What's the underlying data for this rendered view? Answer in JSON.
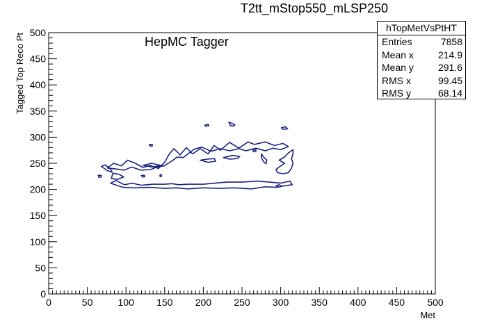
{
  "chart_data": {
    "type": "contour",
    "title": "T2tt_mStop550_mLSP250",
    "annotation": "HepMC Tagger",
    "xlabel": "Met",
    "ylabel": "Tagged Top Reco Pt",
    "xlim": [
      0,
      500
    ],
    "ylim": [
      0,
      500
    ],
    "x_ticks": [
      0,
      50,
      100,
      150,
      200,
      250,
      300,
      350,
      400,
      450,
      500
    ],
    "y_ticks": [
      0,
      50,
      100,
      150,
      200,
      250,
      300,
      350,
      400,
      450,
      500
    ],
    "line_color": "#1a237e",
    "contours": [
      {
        "name": "main-contour",
        "closed": true,
        "points": [
          [
            80,
            212
          ],
          [
            96,
            204
          ],
          [
            110,
            203
          ],
          [
            130,
            204
          ],
          [
            150,
            202
          ],
          [
            165,
            203
          ],
          [
            180,
            201
          ],
          [
            200,
            203
          ],
          [
            220,
            202
          ],
          [
            240,
            203
          ],
          [
            262,
            201
          ],
          [
            280,
            205
          ],
          [
            295,
            204
          ],
          [
            305,
            207
          ],
          [
            315,
            209
          ],
          [
            312,
            216
          ],
          [
            300,
            212
          ],
          [
            286,
            214
          ],
          [
            270,
            216
          ],
          [
            250,
            214
          ],
          [
            230,
            214
          ],
          [
            215,
            212
          ],
          [
            200,
            210
          ],
          [
            180,
            210
          ],
          [
            168,
            209
          ],
          [
            160,
            211
          ],
          [
            150,
            210
          ],
          [
            135,
            210
          ],
          [
            120,
            208
          ],
          [
            108,
            212
          ],
          [
            98,
            209
          ],
          [
            87,
            217
          ],
          [
            80,
            212
          ]
        ]
      },
      {
        "name": "upper-band-contour",
        "closed": true,
        "points": [
          [
            76,
            241
          ],
          [
            84,
            250
          ],
          [
            94,
            245
          ],
          [
            102,
            256
          ],
          [
            112,
            250
          ],
          [
            122,
            242
          ],
          [
            131,
            246
          ],
          [
            142,
            240
          ],
          [
            150,
            252
          ],
          [
            156,
            268
          ],
          [
            162,
            278
          ],
          [
            170,
            266
          ],
          [
            178,
            280
          ],
          [
            186,
            268
          ],
          [
            196,
            278
          ],
          [
            206,
            268
          ],
          [
            214,
            284
          ],
          [
            222,
            275
          ],
          [
            234,
            290
          ],
          [
            246,
            279
          ],
          [
            258,
            291
          ],
          [
            266,
            286
          ],
          [
            280,
            291
          ],
          [
            292,
            284
          ],
          [
            303,
            288
          ],
          [
            310,
            282
          ],
          [
            300,
            276
          ],
          [
            290,
            279
          ],
          [
            280,
            274
          ],
          [
            268,
            279
          ],
          [
            255,
            274
          ],
          [
            246,
            278
          ],
          [
            234,
            274
          ],
          [
            222,
            278
          ],
          [
            210,
            273
          ],
          [
            198,
            281
          ],
          [
            188,
            277
          ],
          [
            174,
            261
          ],
          [
            166,
            262
          ],
          [
            160,
            255
          ],
          [
            149,
            245
          ],
          [
            140,
            243
          ],
          [
            132,
            238
          ],
          [
            119,
            237
          ],
          [
            107,
            243
          ],
          [
            98,
            237
          ],
          [
            88,
            239
          ],
          [
            76,
            241
          ]
        ]
      },
      {
        "name": "left-lobe-contour",
        "closed": true,
        "points": [
          [
            81,
            221
          ],
          [
            89,
            219
          ],
          [
            97,
            224
          ],
          [
            91,
            229
          ],
          [
            83,
            231
          ],
          [
            81,
            221
          ]
        ]
      },
      {
        "name": "left-ribbon-contour",
        "closed": true,
        "points": [
          [
            68,
            244
          ],
          [
            76,
            236
          ],
          [
            82,
            233
          ],
          [
            80,
            239
          ],
          [
            73,
            247
          ],
          [
            68,
            244
          ]
        ]
      },
      {
        "name": "inner-island-a",
        "closed": true,
        "points": [
          [
            122,
            246
          ],
          [
            134,
            243
          ],
          [
            145,
            246
          ],
          [
            133,
            250
          ],
          [
            122,
            246
          ]
        ]
      },
      {
        "name": "inner-island-b",
        "closed": true,
        "points": [
          [
            196,
            256
          ],
          [
            206,
            252
          ],
          [
            216,
            254
          ],
          [
            214,
            259
          ],
          [
            205,
            258
          ],
          [
            196,
            256
          ]
        ]
      },
      {
        "name": "inner-island-c",
        "closed": true,
        "points": [
          [
            226,
            261
          ],
          [
            234,
            258
          ],
          [
            244,
            259
          ],
          [
            247,
            263
          ],
          [
            238,
            265
          ],
          [
            226,
            261
          ]
        ]
      },
      {
        "name": "right-wing-contour",
        "closed": true,
        "points": [
          [
            298,
            256
          ],
          [
            305,
            262
          ],
          [
            310,
            270
          ],
          [
            316,
            276
          ],
          [
            316,
            268
          ],
          [
            314,
            259
          ],
          [
            316,
            250
          ],
          [
            314,
            241
          ],
          [
            310,
            232
          ],
          [
            303,
            230
          ],
          [
            296,
            232
          ],
          [
            294,
            238
          ],
          [
            300,
            245
          ],
          [
            305,
            250
          ],
          [
            298,
            256
          ]
        ]
      },
      {
        "name": "right-stroke-contour",
        "closed": true,
        "points": [
          [
            275,
            268
          ],
          [
            278,
            262
          ],
          [
            282,
            256
          ],
          [
            281,
            249
          ],
          [
            278,
            253
          ],
          [
            275,
            261
          ],
          [
            275,
            268
          ]
        ]
      },
      {
        "name": "blob-top-contour",
        "closed": true,
        "points": [
          [
            233,
            329
          ],
          [
            237,
            326
          ],
          [
            241,
            324
          ],
          [
            239,
            321
          ],
          [
            235,
            322
          ],
          [
            233,
            329
          ]
        ]
      },
      {
        "name": "blob-topright-contour",
        "closed": true,
        "points": [
          [
            301,
            318
          ],
          [
            306,
            320
          ],
          [
            309,
            316
          ],
          [
            303,
            315
          ],
          [
            301,
            318
          ]
        ]
      },
      {
        "name": "small-blob-1",
        "closed": true,
        "points": [
          [
            130,
            286
          ],
          [
            134,
            286
          ],
          [
            134,
            283
          ],
          [
            131,
            283
          ],
          [
            130,
            286
          ]
        ]
      },
      {
        "name": "small-blob-2",
        "closed": true,
        "points": [
          [
            202,
            323
          ],
          [
            206,
            325
          ],
          [
            207,
            322
          ],
          [
            203,
            321
          ],
          [
            202,
            323
          ]
        ]
      },
      {
        "name": "small-blob-3",
        "closed": true,
        "points": [
          [
            264,
            275
          ],
          [
            268,
            276
          ],
          [
            268,
            273
          ],
          [
            265,
            272
          ],
          [
            264,
            275
          ]
        ]
      },
      {
        "name": "small-blob-4",
        "closed": true,
        "points": [
          [
            64,
            227
          ],
          [
            68,
            227
          ],
          [
            68,
            224
          ],
          [
            65,
            223
          ],
          [
            64,
            227
          ]
        ]
      },
      {
        "name": "small-blob-5",
        "closed": true,
        "points": [
          [
            120,
            227
          ],
          [
            124,
            227
          ],
          [
            124,
            224
          ],
          [
            121,
            224
          ],
          [
            120,
            227
          ]
        ]
      },
      {
        "name": "small-blob-6",
        "closed": true,
        "points": [
          [
            144,
            228
          ],
          [
            146,
            228
          ],
          [
            146,
            225
          ],
          [
            144,
            225
          ],
          [
            144,
            228
          ]
        ]
      },
      {
        "name": "small-blob-7",
        "closed": true,
        "points": [
          [
            294,
            207
          ],
          [
            298,
            209
          ],
          [
            301,
            206
          ],
          [
            296,
            205
          ],
          [
            294,
            207
          ]
        ]
      }
    ]
  },
  "stats": {
    "title": "hTopMetVsPtHT",
    "rows": [
      {
        "label": "Entries",
        "value": "7858"
      },
      {
        "label": "Mean x",
        "value": "214.9"
      },
      {
        "label": "Mean y",
        "value": "291.6"
      },
      {
        "label": "RMS x",
        "value": "99.45"
      },
      {
        "label": "RMS y",
        "value": "68.14"
      }
    ]
  }
}
